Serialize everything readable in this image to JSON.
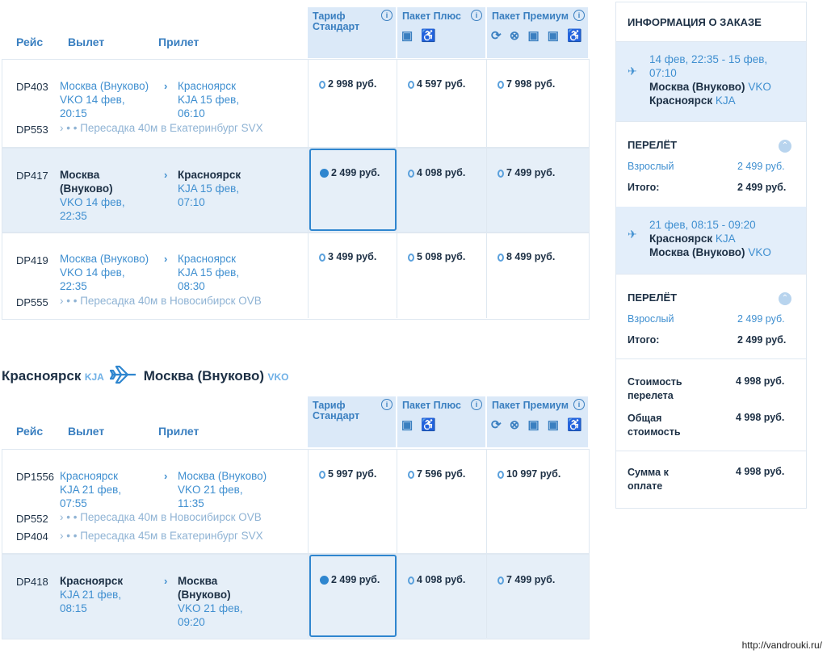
{
  "headers": {
    "flight": "Рейс",
    "departure": "Вылет",
    "arrival": "Прилет"
  },
  "tariffs": [
    {
      "title_line1": "Тариф",
      "title_line2": "Стандарт"
    },
    {
      "title_line1": "Пакет Плюс",
      "title_line2": ""
    },
    {
      "title_line1": "Пакет Премиум",
      "title_line2": ""
    }
  ],
  "outbound": {
    "rows": [
      {
        "flight": "DP403",
        "flight2": "DP553",
        "dep_city": "Москва (Внуково)",
        "dep_code_date": "VKO 14 фев,",
        "dep_time": "20:15",
        "arr_city": "Красноярск",
        "arr_code_date": "KJA 15 фев,",
        "arr_time": "06:10",
        "transfer": "Пересадка 40м в Екатеринбург SVX",
        "prices": [
          "2 998 руб.",
          "4 597 руб.",
          "7 998 руб."
        ]
      },
      {
        "flight": "DP417",
        "dep_city1": "Москва",
        "dep_city2": "(Внуково)",
        "dep_code_date": "VKO 14 фев,",
        "dep_time": "22:35",
        "arr_city": "Красноярск",
        "arr_code_date": "KJA 15 фев,",
        "arr_time": "07:10",
        "prices": [
          "2 499 руб.",
          "4 098 руб.",
          "7 499 руб."
        ]
      },
      {
        "flight": "DP419",
        "flight2": "DP555",
        "dep_city": "Москва (Внуково)",
        "dep_code_date": "VKO 14 фев,",
        "dep_time": "22:35",
        "arr_city": "Красноярск",
        "arr_code_date": "KJA 15 фев,",
        "arr_time": "08:30",
        "transfer": "Пересадка 40м в Новосибирск OVB",
        "prices": [
          "3 499 руб.",
          "5 098 руб.",
          "8 499 руб."
        ]
      }
    ]
  },
  "return_route": {
    "from_city": "Красноярск",
    "from_code": "KJA",
    "to_city": "Москва (Внуково)",
    "to_code": "VKO"
  },
  "inbound": {
    "rows": [
      {
        "flight": "DP1556",
        "flight2": "DP552",
        "flight3": "DP404",
        "dep_city": "Красноярск",
        "dep_code_date": "KJA 21 фев,",
        "dep_time": "07:55",
        "arr_city": "Москва (Внуково)",
        "arr_code_date": "VKO 21 фев,",
        "arr_time": "11:35",
        "transfer": "Пересадка 40м в Новосибирск OVB",
        "transfer2": "Пересадка 45м в Екатеринбург SVX",
        "prices": [
          "5 997 руб.",
          "7 596 руб.",
          "10 997 руб."
        ]
      },
      {
        "flight": "DP418",
        "dep_city": "Красноярск",
        "dep_code_date": "KJA 21 фев,",
        "dep_time": "08:15",
        "arr_city1": "Москва",
        "arr_city2": "(Внуково)",
        "arr_code_date": "VKO 21 фев,",
        "arr_time": "09:20",
        "prices": [
          "2 499 руб.",
          "4 098 руб.",
          "7 499 руб."
        ]
      }
    ]
  },
  "sidebar": {
    "title": "ИНФОРМАЦИЯ О ЗАКАЗЕ",
    "leg1": {
      "dates1": "14 фев, 22:35 - 15 фев,",
      "dates2": "07:10",
      "from_city": "Москва (Внуково)",
      "from_code": "VKO",
      "to_city": "Красноярск",
      "to_code": "KJA"
    },
    "flight1": {
      "title": "ПЕРЕЛЁТ",
      "adult_label": "Взрослый",
      "adult_price": "2 499 руб.",
      "total_label": "Итого:",
      "total_price": "2 499 руб."
    },
    "leg2": {
      "dates1": "21 фев, 08:15 - 09:20",
      "from_city": "Красноярск",
      "from_code": "KJA",
      "to_city": "Москва (Внуково)",
      "to_code": "VKO"
    },
    "flight2": {
      "title": "ПЕРЕЛЁТ",
      "adult_label": "Взрослый",
      "adult_price": "2 499 руб.",
      "total_label": "Итого:",
      "total_price": "2 499 руб."
    },
    "cost_label1": "Стоимость",
    "cost_label2": "перелета",
    "cost_value": "4 998 руб.",
    "total_label1": "Общая",
    "total_label2": "стоимость",
    "total_value": "4 998 руб.",
    "pay_label1": "Сумма к",
    "pay_label2": "оплате",
    "pay_value": "4 998 руб."
  },
  "watermark": "http://vandrouki.ru/"
}
